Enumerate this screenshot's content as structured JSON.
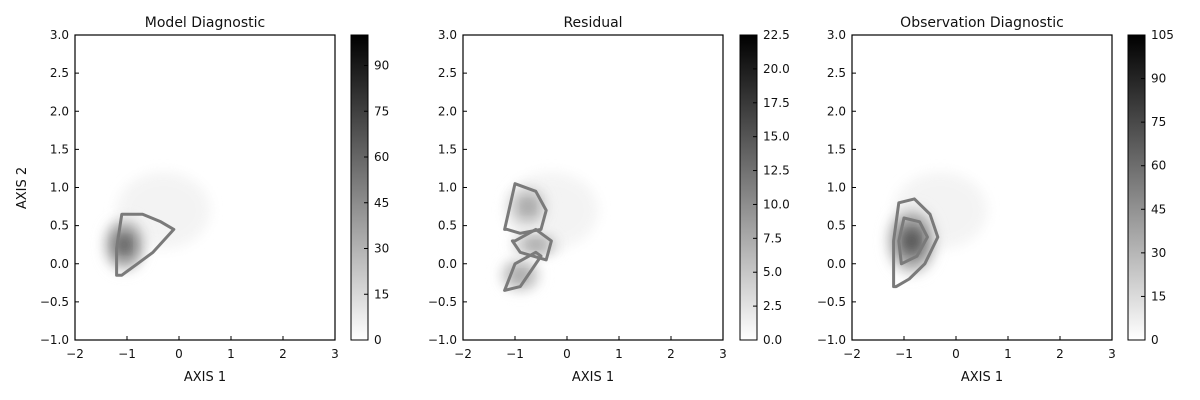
{
  "chart_data": [
    {
      "type": "heatmap",
      "title": "Model Diagnostic",
      "xlabel": "AXIS 1",
      "ylabel": "AXIS 2",
      "xlim": [
        -2,
        3
      ],
      "ylim": [
        -1,
        3
      ],
      "xticks": [
        "−2",
        "−1",
        "0",
        "1",
        "2",
        "3"
      ],
      "yticks": [
        "−1.0",
        "−0.5",
        "0.0",
        "0.5",
        "1.0",
        "1.5",
        "2.0",
        "2.5",
        "3.0"
      ],
      "colorbar": {
        "min": 0,
        "max": 100,
        "ticks": [
          0,
          15,
          30,
          45,
          60,
          75,
          90
        ],
        "tick_labels": [
          "0",
          "15",
          "30",
          "45",
          "60",
          "75",
          "90"
        ]
      },
      "colormap": "gray_r",
      "grid": false,
      "density_blobs": [
        {
          "x": -1.05,
          "y": 0.25,
          "sx": 0.25,
          "sy": 0.22,
          "peak": 85
        }
      ],
      "contours": [
        {
          "level": 15,
          "x": [
            -1.2,
            -1.1,
            -0.8,
            -0.5,
            -0.1,
            -0.35,
            -0.7,
            -1.1,
            -1.2
          ],
          "y": [
            -0.15,
            -0.15,
            0.0,
            0.15,
            0.45,
            0.55,
            0.65,
            0.65,
            0.2
          ]
        }
      ]
    },
    {
      "type": "heatmap",
      "title": "Residual",
      "xlabel": "AXIS 1",
      "ylabel": "",
      "xlim": [
        -2,
        3
      ],
      "ylim": [
        -1,
        3
      ],
      "xticks": [
        "−2",
        "−1",
        "0",
        "1",
        "2",
        "3"
      ],
      "yticks": [
        "−1.0",
        "−0.5",
        "0.0",
        "0.5",
        "1.0",
        "1.5",
        "2.0",
        "2.5",
        "3.0"
      ],
      "colorbar": {
        "min": 0,
        "max": 22.5,
        "ticks": [
          0,
          2.5,
          5,
          7.5,
          10,
          12.5,
          15,
          17.5,
          20,
          22.5
        ],
        "tick_labels": [
          "0.0",
          "2.5",
          "5.0",
          "7.5",
          "10.0",
          "12.5",
          "15.0",
          "17.5",
          "20.0",
          "22.5"
        ]
      },
      "colormap": "gray_r",
      "grid": false,
      "density_blobs": [
        {
          "x": -0.75,
          "y": 0.75,
          "sx": 0.25,
          "sy": 0.18,
          "peak": 11
        },
        {
          "x": -0.6,
          "y": 0.25,
          "sx": 0.3,
          "sy": 0.1,
          "peak": 11
        },
        {
          "x": -0.9,
          "y": -0.15,
          "sx": 0.25,
          "sy": 0.14,
          "peak": 11
        }
      ],
      "contours": [
        {
          "level": 10,
          "x": [
            -1.2,
            -1.0,
            -0.6,
            -0.4,
            -0.5,
            -0.9,
            -1.15
          ],
          "y": [
            0.45,
            1.05,
            0.95,
            0.7,
            0.45,
            0.4,
            0.45
          ]
        },
        {
          "level": 10,
          "x": [
            -1.0,
            -0.6,
            -0.3,
            -0.4,
            -0.9,
            -1.05
          ],
          "y": [
            0.3,
            0.45,
            0.3,
            0.05,
            0.15,
            0.3
          ]
        },
        {
          "level": 10,
          "x": [
            -1.2,
            -0.9,
            -0.5,
            -0.6,
            -1.0,
            -1.2
          ],
          "y": [
            -0.35,
            -0.3,
            0.1,
            0.15,
            0.0,
            -0.35
          ]
        }
      ]
    },
    {
      "type": "heatmap",
      "title": "Observation Diagnostic",
      "xlabel": "AXIS 1",
      "ylabel": "",
      "xlim": [
        -2,
        3
      ],
      "ylim": [
        -1,
        3
      ],
      "xticks": [
        "−2",
        "−1",
        "0",
        "1",
        "2",
        "3"
      ],
      "yticks": [
        "−1.0",
        "−0.5",
        "0.0",
        "0.5",
        "1.0",
        "1.5",
        "2.0",
        "2.5",
        "3.0"
      ],
      "colorbar": {
        "min": 0,
        "max": 105,
        "ticks": [
          0,
          15,
          30,
          45,
          60,
          75,
          90,
          105
        ],
        "tick_labels": [
          "0",
          "15",
          "30",
          "45",
          "60",
          "75",
          "90",
          "105"
        ]
      },
      "colormap": "gray_r",
      "grid": false,
      "density_blobs": [
        {
          "x": -0.85,
          "y": 0.3,
          "sx": 0.3,
          "sy": 0.28,
          "peak": 95
        }
      ],
      "contours": [
        {
          "level": 15,
          "x": [
            -1.2,
            -1.15,
            -0.9,
            -0.6,
            -0.35,
            -0.5,
            -0.8,
            -1.1,
            -1.2
          ],
          "y": [
            -0.3,
            -0.3,
            -0.2,
            0.0,
            0.35,
            0.65,
            0.85,
            0.8,
            0.3
          ]
        },
        {
          "level": 45,
          "x": [
            -1.05,
            -0.75,
            -0.55,
            -0.7,
            -1.0,
            -1.1
          ],
          "y": [
            0.0,
            0.1,
            0.35,
            0.55,
            0.6,
            0.3
          ]
        }
      ]
    }
  ]
}
